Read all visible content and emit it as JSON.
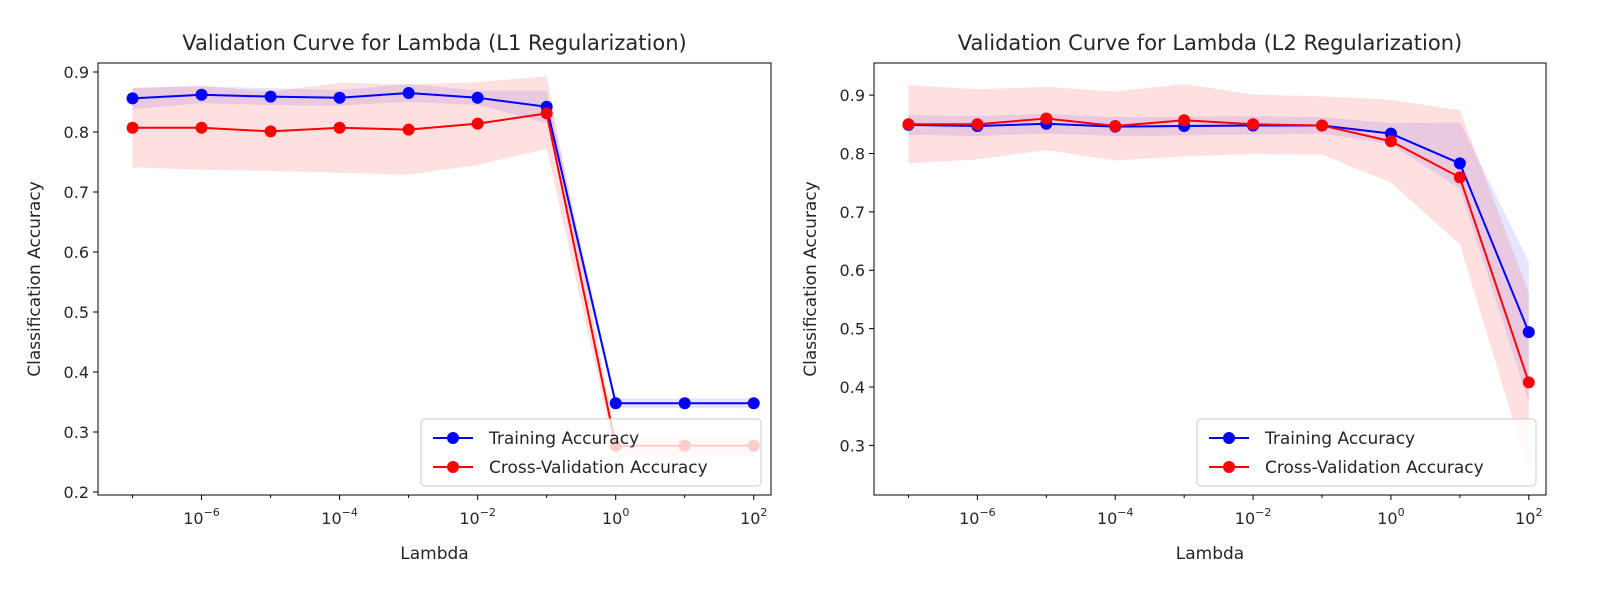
{
  "chart_data": [
    {
      "type": "line",
      "title": "Validation Curve for Lambda  (L1 Regularization)",
      "xlabel": "Lambda",
      "ylabel": "Classification Accuracy",
      "xscale": "log",
      "x": [
        1e-07,
        1e-06,
        1e-05,
        0.0001,
        0.001,
        0.01,
        0.1,
        1,
        10,
        100
      ],
      "xlim_exp": [
        -7.5,
        2.25
      ],
      "ylim": [
        0.195,
        0.915
      ],
      "yticks": [
        "0.2",
        "0.3",
        "0.4",
        "0.5",
        "0.6",
        "0.7",
        "0.8",
        "0.9"
      ],
      "xticks": [
        {
          "base": "10",
          "exp": "−6"
        },
        {
          "base": "10",
          "exp": "−4"
        },
        {
          "base": "10",
          "exp": "−2"
        },
        {
          "base": "10",
          "exp": "0"
        },
        {
          "base": "10",
          "exp": "2"
        }
      ],
      "legend_position": "lower right",
      "series": [
        {
          "name": "Training Accuracy",
          "color": "#0000ff",
          "values": [
            0.856,
            0.862,
            0.859,
            0.857,
            0.865,
            0.857,
            0.842,
            0.348,
            0.348,
            0.348
          ],
          "band_low": [
            0.838,
            0.848,
            0.845,
            0.844,
            0.85,
            0.845,
            0.815,
            0.34,
            0.34,
            0.34
          ],
          "band_high": [
            0.874,
            0.876,
            0.873,
            0.87,
            0.88,
            0.869,
            0.869,
            0.356,
            0.356,
            0.356
          ]
        },
        {
          "name": "Cross-Validation Accuracy",
          "color": "#ff0000",
          "values": [
            0.807,
            0.807,
            0.801,
            0.807,
            0.804,
            0.814,
            0.831,
            0.277,
            0.277,
            0.277
          ],
          "band_low": [
            0.741,
            0.737,
            0.735,
            0.732,
            0.729,
            0.745,
            0.772,
            0.26,
            0.26,
            0.26
          ],
          "band_high": [
            0.873,
            0.877,
            0.867,
            0.882,
            0.879,
            0.883,
            0.893,
            0.294,
            0.294,
            0.294
          ]
        }
      ]
    },
    {
      "type": "line",
      "title": "Validation Curve for Lambda  (L2 Regularization)",
      "xlabel": "Lambda",
      "ylabel": "Classification Accuracy",
      "xscale": "log",
      "x": [
        1e-07,
        1e-06,
        1e-05,
        0.0001,
        0.001,
        0.01,
        0.1,
        1,
        10,
        100
      ],
      "xlim_exp": [
        -7.5,
        2.25
      ],
      "ylim": [
        0.215,
        0.955
      ],
      "yticks": [
        "0.3",
        "0.4",
        "0.5",
        "0.6",
        "0.7",
        "0.8",
        "0.9"
      ],
      "xticks": [
        {
          "base": "10",
          "exp": "−6"
        },
        {
          "base": "10",
          "exp": "−4"
        },
        {
          "base": "10",
          "exp": "−2"
        },
        {
          "base": "10",
          "exp": "0"
        },
        {
          "base": "10",
          "exp": "2"
        }
      ],
      "legend_position": "lower right",
      "series": [
        {
          "name": "Training Accuracy",
          "color": "#0000ff",
          "values": [
            0.849,
            0.847,
            0.851,
            0.846,
            0.847,
            0.848,
            0.848,
            0.834,
            0.783,
            0.494
          ],
          "band_low": [
            0.832,
            0.83,
            0.834,
            0.83,
            0.831,
            0.832,
            0.834,
            0.816,
            0.74,
            0.375
          ],
          "band_high": [
            0.866,
            0.864,
            0.868,
            0.862,
            0.863,
            0.864,
            0.862,
            0.852,
            0.853,
            0.615
          ]
        },
        {
          "name": "Cross-Validation Accuracy",
          "color": "#ff0000",
          "values": [
            0.85,
            0.85,
            0.86,
            0.847,
            0.857,
            0.85,
            0.848,
            0.821,
            0.759,
            0.408
          ],
          "band_low": [
            0.783,
            0.79,
            0.806,
            0.788,
            0.795,
            0.799,
            0.798,
            0.75,
            0.644,
            0.255
          ],
          "band_high": [
            0.917,
            0.91,
            0.914,
            0.906,
            0.919,
            0.901,
            0.898,
            0.892,
            0.874,
            0.561
          ]
        }
      ]
    }
  ]
}
